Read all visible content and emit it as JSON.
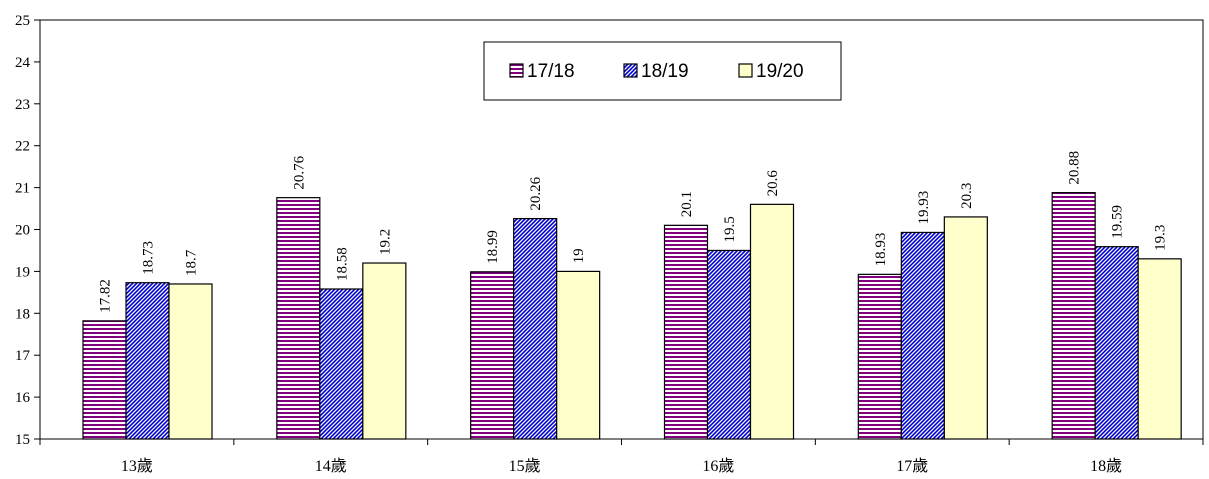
{
  "chart_data": {
    "type": "bar",
    "title": "",
    "xlabel": "",
    "ylabel": "",
    "categories": [
      "13歲",
      "14歲",
      "15歲",
      "16歲",
      "17歲",
      "18歲"
    ],
    "series": [
      {
        "name": "17/18",
        "values": [
          17.82,
          20.76,
          18.99,
          20.1,
          18.93,
          20.88
        ],
        "labels": [
          "17.82",
          "20.76",
          "18.99",
          "20.1",
          "18.93",
          "20.88"
        ],
        "pattern": "horizontal-stripes",
        "color": "#800080"
      },
      {
        "name": "18/19",
        "values": [
          18.73,
          18.58,
          20.26,
          19.5,
          19.93,
          19.59
        ],
        "labels": [
          "18.73",
          "18.58",
          "20.26",
          "19.5",
          "19.93",
          "19.59"
        ],
        "pattern": "diagonal-hatch",
        "color": "#0000cc"
      },
      {
        "name": "19/20",
        "values": [
          18.7,
          19.2,
          19,
          20.6,
          20.3,
          19.3
        ],
        "labels": [
          "18.7",
          "19.2",
          "19",
          "20.6",
          "20.3",
          "19.3"
        ],
        "pattern": "solid",
        "color": "#ffffcc"
      }
    ],
    "ylim": [
      15,
      25
    ],
    "yticks": [
      "15",
      "16",
      "17",
      "18",
      "19",
      "20",
      "21",
      "22",
      "23",
      "24",
      "25"
    ],
    "grid": false,
    "legend_position": "top-center"
  }
}
